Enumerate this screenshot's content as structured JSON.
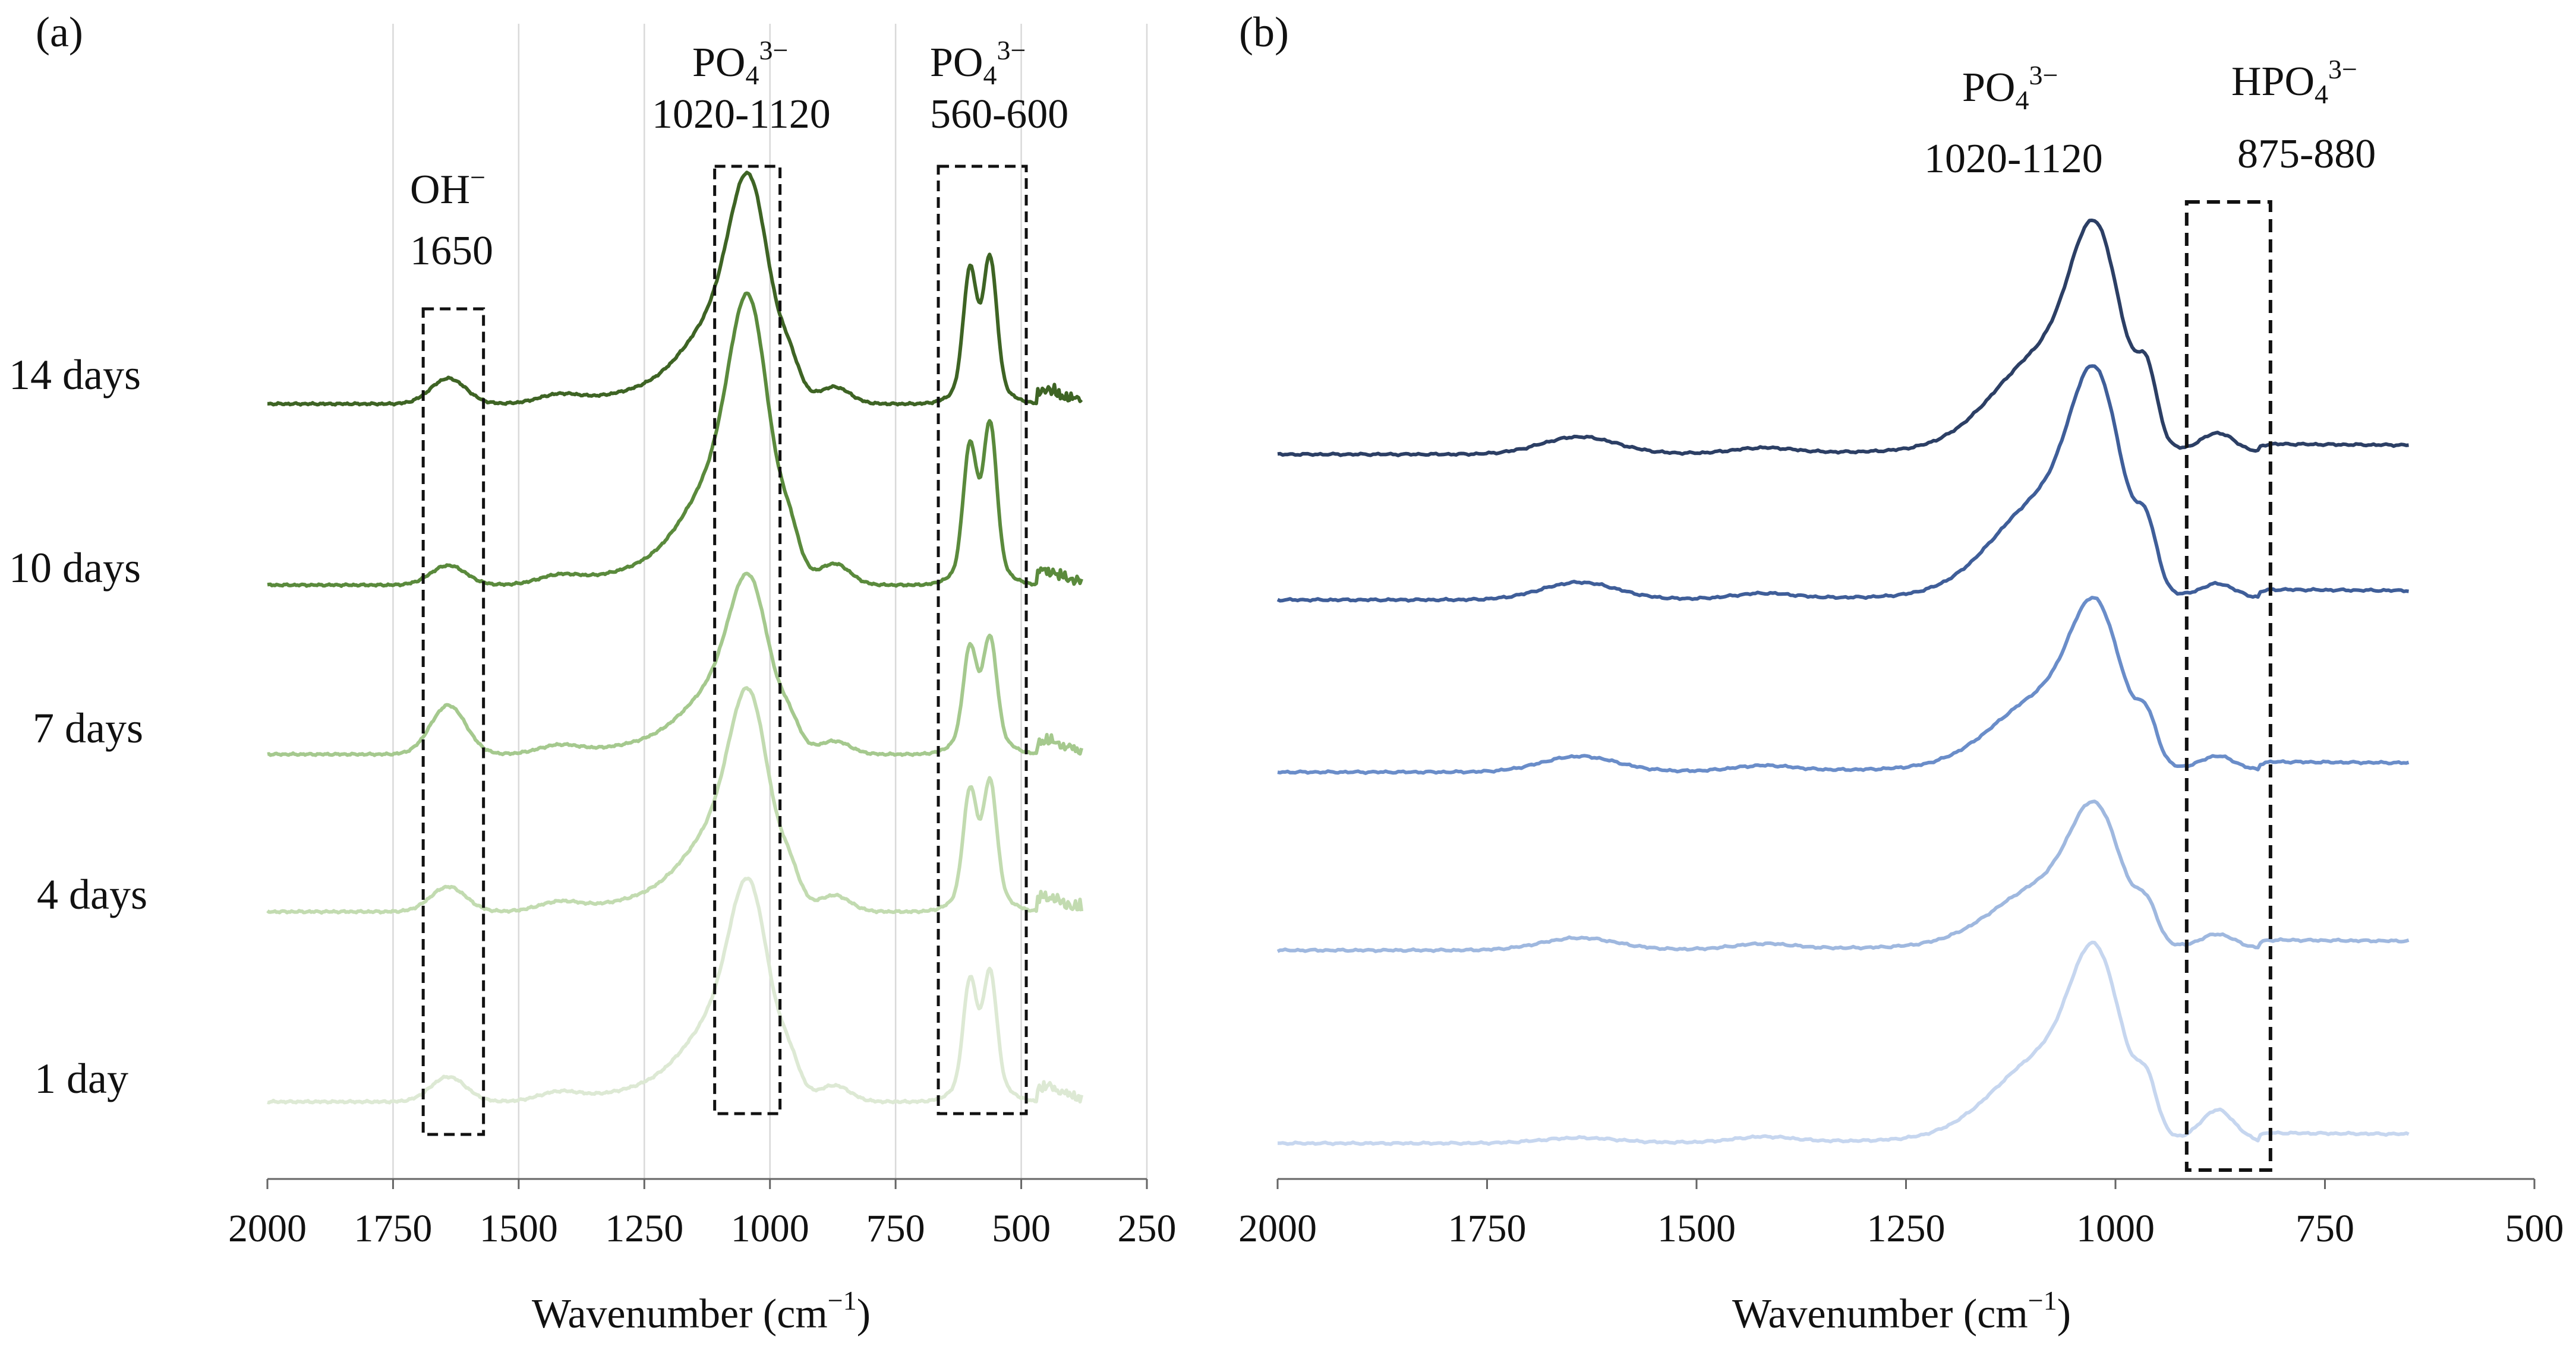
{
  "chart_data": [
    {
      "type": "line",
      "panel_label": "(a)",
      "xlabel": "Wavenumber (cm",
      "xlabel_exponent": "−1",
      "xlabel_close": ")",
      "xlim": [
        2000,
        250
      ],
      "x_reversed": true,
      "xticks": [
        "2000",
        "1750",
        "1500",
        "1250",
        "1000",
        "750",
        "500",
        "250"
      ],
      "grid": "vertical",
      "y_axis": "none (stacked offset spectra, arbitrary units)",
      "series": [
        {
          "name": "1 day",
          "color": "#dde9d4",
          "baseline": 0.0,
          "peaks": {
            "1650": 0.12,
            "1040": 1.05,
            "600": 0.47,
            "565": 0.5
          }
        },
        {
          "name": "4 days",
          "color": "#c2dbb0",
          "baseline": 1.0,
          "peaks": {
            "1650": 0.12,
            "1040": 1.05,
            "600": 0.47,
            "565": 0.5
          }
        },
        {
          "name": "7 days",
          "color": "#a5c98e",
          "baseline": 1.95,
          "peaks": {
            "1650": 0.25,
            "1040": 0.9,
            "600": 0.43,
            "565": 0.47
          }
        },
        {
          "name": "10 days",
          "color": "#5a8a3c",
          "baseline": 2.95,
          "peaks": {
            "1650": 0.1,
            "1040": 1.45,
            "600": 0.6,
            "565": 0.7
          }
        },
        {
          "name": "14 days",
          "color": "#3e6424",
          "baseline": 3.95,
          "peaks": {
            "1650": 0.13,
            "1040": 1.15,
            "600": 0.57,
            "565": 0.62
          }
        }
      ],
      "annotations": [
        {
          "id": "oh",
          "label": "OH",
          "sup": "−",
          "range_label": "1650",
          "box_x": [
            1690,
            1570
          ]
        },
        {
          "id": "po4-a",
          "label": "PO",
          "sub": "4",
          "sup": "3−",
          "range_label": "1020-1120",
          "box_x": [
            1110,
            980
          ]
        },
        {
          "id": "po4-b",
          "label": "PO",
          "sub": "4",
          "sup": "3−",
          "range_label": "560-600",
          "box_x": [
            665,
            490
          ]
        }
      ]
    },
    {
      "type": "line",
      "panel_label": "(b)",
      "xlabel": "Wavenumber (cm",
      "xlabel_exponent": "−1",
      "xlabel_close": ")",
      "xlim": [
        2000,
        500
      ],
      "x_reversed": true,
      "xticks": [
        "2000",
        "1750",
        "1500",
        "1250",
        "1000",
        "750",
        "500"
      ],
      "grid": "none",
      "series": [
        {
          "name": "1 day",
          "color": "#c6d6ef",
          "baseline": 0.0,
          "peaks": {
            "1650": 0.03,
            "1020": 1.15,
            "960": 0.25,
            "880": 0.18
          }
        },
        {
          "name": "4 days",
          "color": "#9fb8df",
          "baseline": 1.1,
          "peaks": {
            "1650": 0.07,
            "1020": 0.85,
            "960": 0.18,
            "880": 0.08
          }
        },
        {
          "name": "7 days",
          "color": "#6a8dc9",
          "baseline": 2.2,
          "peaks": {
            "1650": 0.09,
            "1020": 1.0,
            "960": 0.22,
            "880": 0.08
          }
        },
        {
          "name": "10 days",
          "color": "#3f5e99",
          "baseline": 3.25,
          "peaks": {
            "1650": 0.1,
            "1020": 1.35,
            "960": 0.3,
            "880": 0.08
          }
        },
        {
          "name": "14 days",
          "color": "#2c3f65",
          "baseline": 4.15,
          "peaks": {
            "1650": 0.1,
            "1020": 1.35,
            "960": 0.35,
            "880": 0.11
          }
        }
      ],
      "annotations": [
        {
          "id": "po4",
          "label": "PO",
          "sub": "4",
          "sup": "3−",
          "range_label": "1020-1120"
        },
        {
          "id": "hpo4",
          "label": "HPO",
          "sub": "4",
          "sup": "3−",
          "range_label": "875-880",
          "box_x": [
            915,
            815
          ]
        }
      ]
    }
  ]
}
